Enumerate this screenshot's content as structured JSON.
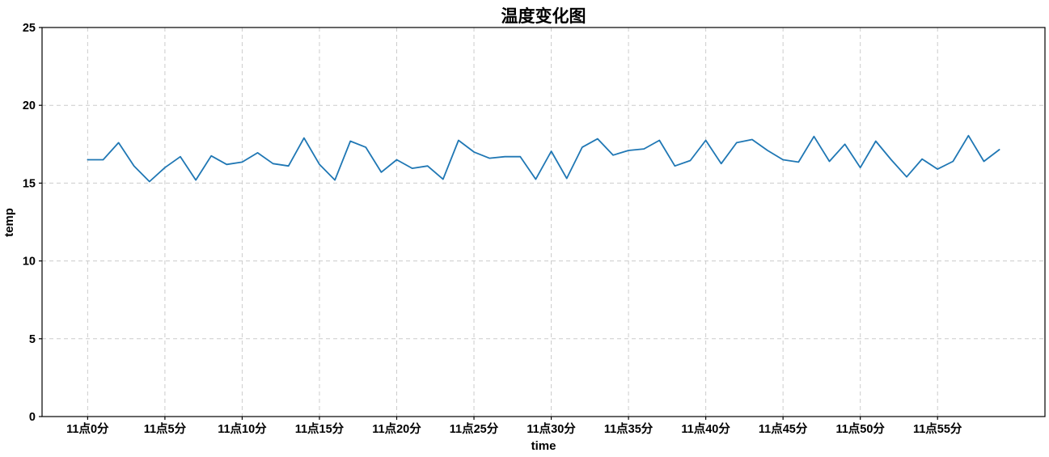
{
  "chart_data": {
    "type": "line",
    "title": "温度变化图",
    "xlabel": "time",
    "ylabel": "temp",
    "x_unit": "minutes after 11:00",
    "x": [
      0,
      1,
      2,
      3,
      4,
      5,
      6,
      7,
      8,
      9,
      10,
      11,
      12,
      13,
      14,
      15,
      16,
      17,
      18,
      19,
      20,
      21,
      22,
      23,
      24,
      25,
      26,
      27,
      28,
      29,
      30,
      31,
      32,
      33,
      34,
      35,
      36,
      37,
      38,
      39,
      40,
      41,
      42,
      43,
      44,
      45,
      46,
      47,
      48,
      49,
      50,
      51,
      52,
      53,
      54,
      55,
      56,
      57,
      58,
      59
    ],
    "values": [
      16.5,
      16.5,
      17.6,
      16.1,
      15.1,
      16.0,
      16.7,
      15.2,
      16.75,
      16.2,
      16.35,
      16.95,
      16.25,
      16.1,
      17.9,
      16.2,
      15.2,
      17.7,
      17.3,
      15.7,
      16.5,
      15.95,
      16.1,
      15.25,
      17.75,
      17.0,
      16.6,
      16.7,
      16.7,
      15.25,
      17.05,
      15.3,
      17.3,
      17.85,
      16.8,
      17.1,
      17.2,
      17.75,
      16.1,
      16.45,
      17.75,
      16.25,
      17.6,
      17.8,
      17.1,
      16.5,
      16.35,
      18.0,
      16.4,
      17.5,
      16.0,
      17.7,
      16.5,
      15.4,
      16.55,
      15.9,
      16.4,
      18.05,
      16.4,
      17.15
    ],
    "x_tick_positions": [
      0,
      5,
      10,
      15,
      20,
      25,
      30,
      35,
      40,
      45,
      50,
      55
    ],
    "x_tick_labels": [
      "11点0分",
      "11点5分",
      "11点10分",
      "11点15分",
      "11点20分",
      "11点25分",
      "11点30分",
      "11点35分",
      "11点40分",
      "11点45分",
      "11点50分",
      "11点55分"
    ],
    "yticks": [
      0,
      5,
      10,
      15,
      20,
      25
    ],
    "ytick_labels": [
      "0",
      "5",
      "10",
      "15",
      "20",
      "25"
    ],
    "ylim": [
      0,
      25
    ],
    "grid": true,
    "grid_style": "dashed",
    "legend": false,
    "colors": {
      "line": "#1f77b4",
      "grid": "#cccccc",
      "axis": "#000000",
      "text": "#000000",
      "background": "#ffffff"
    }
  }
}
